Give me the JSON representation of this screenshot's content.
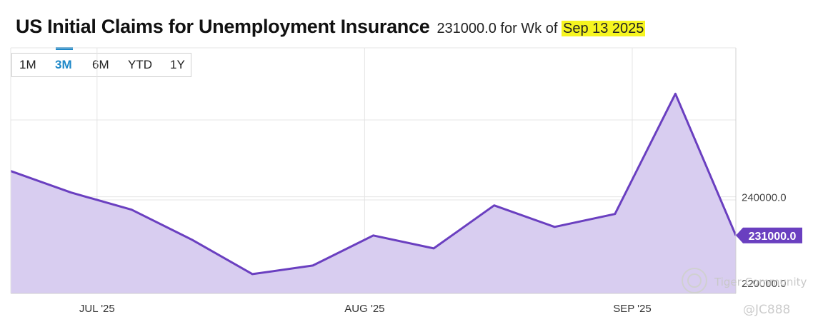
{
  "header": {
    "title": "US Initial Claims for Unemployment Insurance",
    "value_text": "231000.0 for Wk of ",
    "date_text": "Sep 13 2025"
  },
  "range_buttons": [
    "1M",
    "3M",
    "6M",
    "YTD",
    "1Y"
  ],
  "active_range": "3M",
  "watermark": {
    "community": "Tiger Community",
    "handle": "@JC888"
  },
  "colors": {
    "line": "#6a3fc0",
    "fill": "#d8cdf0",
    "active_tab": "#1e88c8",
    "highlight": "#f6f520"
  },
  "chart_data": {
    "type": "area",
    "title": "US Initial Claims for Unemployment Insurance",
    "x": [
      "2025-06-21",
      "2025-06-28",
      "2025-07-05",
      "2025-07-12",
      "2025-07-19",
      "2025-07-26",
      "2025-08-02",
      "2025-08-09",
      "2025-08-16",
      "2025-08-23",
      "2025-08-30",
      "2025-09-06",
      "2025-09-13"
    ],
    "values": [
      246000,
      241000,
      237000,
      230000,
      222000,
      224000,
      231000,
      228000,
      238000,
      233000,
      236000,
      264000,
      231000
    ],
    "x_ticks": [
      {
        "date": "2025-07-01",
        "label": "JUL '25"
      },
      {
        "date": "2025-08-01",
        "label": "AUG '25"
      },
      {
        "date": "2025-09-01",
        "label": "SEP '25"
      }
    ],
    "y_ticks": [
      {
        "value": 220000,
        "label": "220000.0"
      },
      {
        "value": 240000,
        "label": "240000.0"
      }
    ],
    "ylim": [
      217500,
      274700
    ],
    "last_value_label": "231000.0",
    "grid": true,
    "y_axis_position": "right"
  }
}
